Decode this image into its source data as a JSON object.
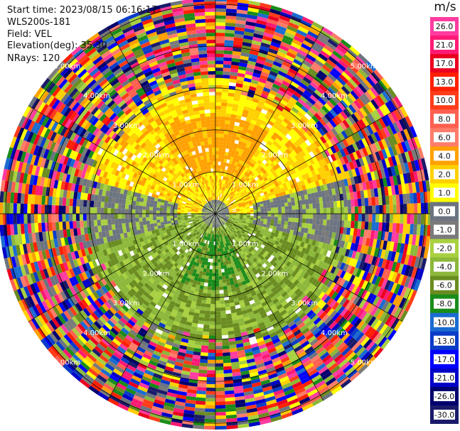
{
  "header": {
    "start_time": "Start time: 2023/08/15 06:16:17",
    "station": "WLS200s-181",
    "field": "Field: VEL",
    "elevation": "Elevation(deg): 35.30",
    "nrays": "NRays: 120"
  },
  "chart_data": {
    "type": "ppi_polar",
    "field": "VEL",
    "units": "m/s",
    "elevation_deg": 35.3,
    "n_rays": 120,
    "range_ring_labels": [
      "1.00km",
      "2.00km",
      "3.00km",
      "4.00km",
      "5.00km"
    ],
    "range_ring_label_positions": [
      "NE",
      "SE",
      "SW",
      "NW"
    ],
    "colorbar": {
      "unit_label": "m/s",
      "tick_labels": [
        "26.0",
        "21.0",
        "17.0",
        "13.0",
        "10.0",
        "8.0",
        "6.0",
        "4.0",
        "2.0",
        "1.0",
        "0.0",
        "-1.0",
        "-2.0",
        "-4.0",
        "-6.0",
        "-8.0",
        "-10.0",
        "-13.0",
        "-17.0",
        "-21.0",
        "-26.0",
        "-30.0"
      ],
      "colors": [
        "#ff3ba0",
        "#ff1a75",
        "#ea0020",
        "#ff2000",
        "#ff3c1a",
        "#ff6050",
        "#ff7c6a",
        "#ffa000",
        "#ffd000",
        "#ffff00",
        "#6b7480",
        "#7a7a7a",
        "#a8d040",
        "#8cb83a",
        "#6a8c20",
        "#1a8c1a",
        "#1a6cd0",
        "#0a3cc8",
        "#0000ff",
        "#0000c8",
        "#00006e",
        "#1a1a6a"
      ]
    },
    "pattern_summary": {
      "inner_region_km": [
        0,
        3.2
      ],
      "upper_half": "positive velocities (yellow / orange, 2 to 6 m/s)",
      "lower_half": "negative velocities (green, -2 to -6 m/s)",
      "west_east_band": "near-zero velocities (gray)",
      "outer_region": "noisy multicolor returns beyond ~3 km"
    }
  }
}
